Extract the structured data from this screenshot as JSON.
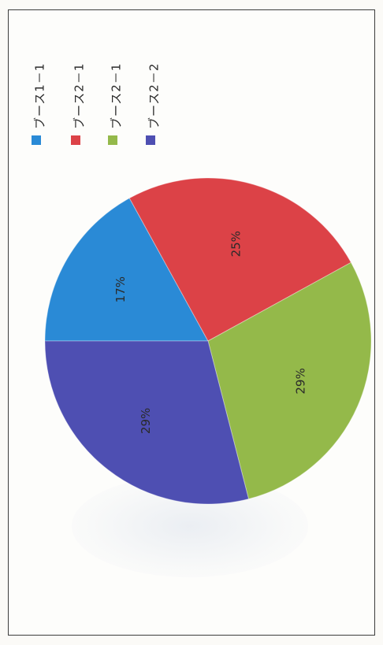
{
  "chart_data": {
    "type": "pie",
    "orientation": "rotated 90° clockwise (scanned page)",
    "legend_position": "top",
    "labels": [
      "ブース1－1",
      "ブース2－1",
      "ブース2－1",
      "ブース2－2"
    ],
    "legend_display": [
      "ブース1－1",
      "ブース2－1",
      "ブース2－1",
      "ブース2－2"
    ],
    "values": [
      17,
      25,
      29,
      29
    ],
    "value_labels": [
      "17%",
      "25%",
      "29%",
      "29%"
    ],
    "colors": [
      "#2a8ad6",
      "#dc4247",
      "#94b94a",
      "#4e4fb2"
    ]
  }
}
